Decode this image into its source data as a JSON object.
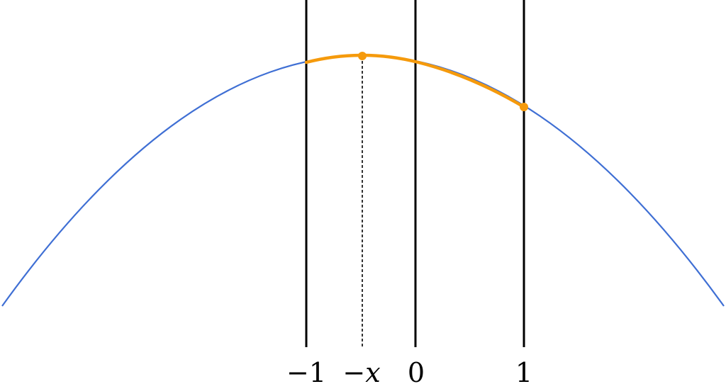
{
  "labels": {
    "minus_one": "−1",
    "minus_x": "−x",
    "zero": "0",
    "one": "1"
  },
  "colors": {
    "curve": "#3f6fd4",
    "highlight": "#f59a0c",
    "lines": "#000000"
  }
}
